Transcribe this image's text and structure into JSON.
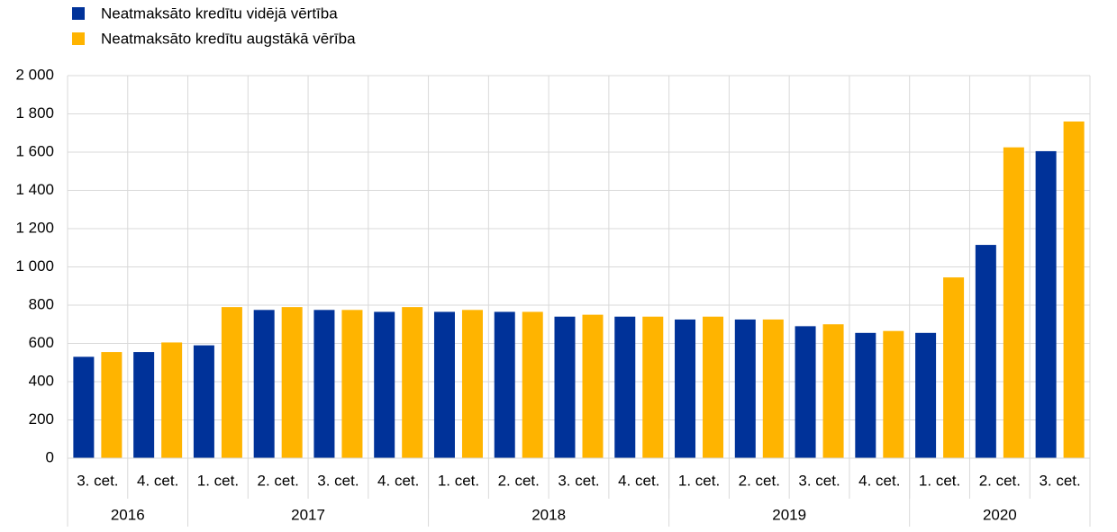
{
  "chart_data": {
    "type": "bar",
    "groups": [
      {
        "label": "2016",
        "categories": [
          "3. cet.",
          "4. cet."
        ]
      },
      {
        "label": "2017",
        "categories": [
          "1. cet.",
          "2. cet.",
          "3. cet.",
          "4. cet."
        ]
      },
      {
        "label": "2018",
        "categories": [
          "1. cet.",
          "2. cet.",
          "3. cet.",
          "4. cet."
        ]
      },
      {
        "label": "2019",
        "categories": [
          "1. cet.",
          "2. cet.",
          "3. cet.",
          "4. cet."
        ]
      },
      {
        "label": "2020",
        "categories": [
          "1. cet.",
          "2. cet.",
          "3. cet."
        ]
      }
    ],
    "series": [
      {
        "name": "Neatmaksāto kredītu vidējā vērtība",
        "color": "#003299",
        "values": [
          530,
          555,
          590,
          775,
          775,
          765,
          765,
          765,
          740,
          740,
          725,
          725,
          690,
          655,
          655,
          1115,
          1605
        ]
      },
      {
        "name": "Neatmaksāto kredītu augstākā vērība",
        "color": "#ffb400",
        "values": [
          555,
          605,
          790,
          790,
          775,
          790,
          775,
          765,
          750,
          740,
          740,
          725,
          700,
          665,
          945,
          1625,
          1760
        ]
      }
    ],
    "ylim": [
      0,
      2000
    ],
    "yticks": [
      0,
      200,
      400,
      600,
      800,
      {
        "value": 1000,
        "label": "1 000"
      },
      {
        "value": 1200,
        "label": "1 200"
      },
      {
        "value": 1400,
        "label": "1 400"
      },
      {
        "value": 1600,
        "label": "1 600"
      },
      {
        "value": 1800,
        "label": "1 800"
      },
      {
        "value": 2000,
        "label": "2 000"
      }
    ],
    "grid": true
  }
}
